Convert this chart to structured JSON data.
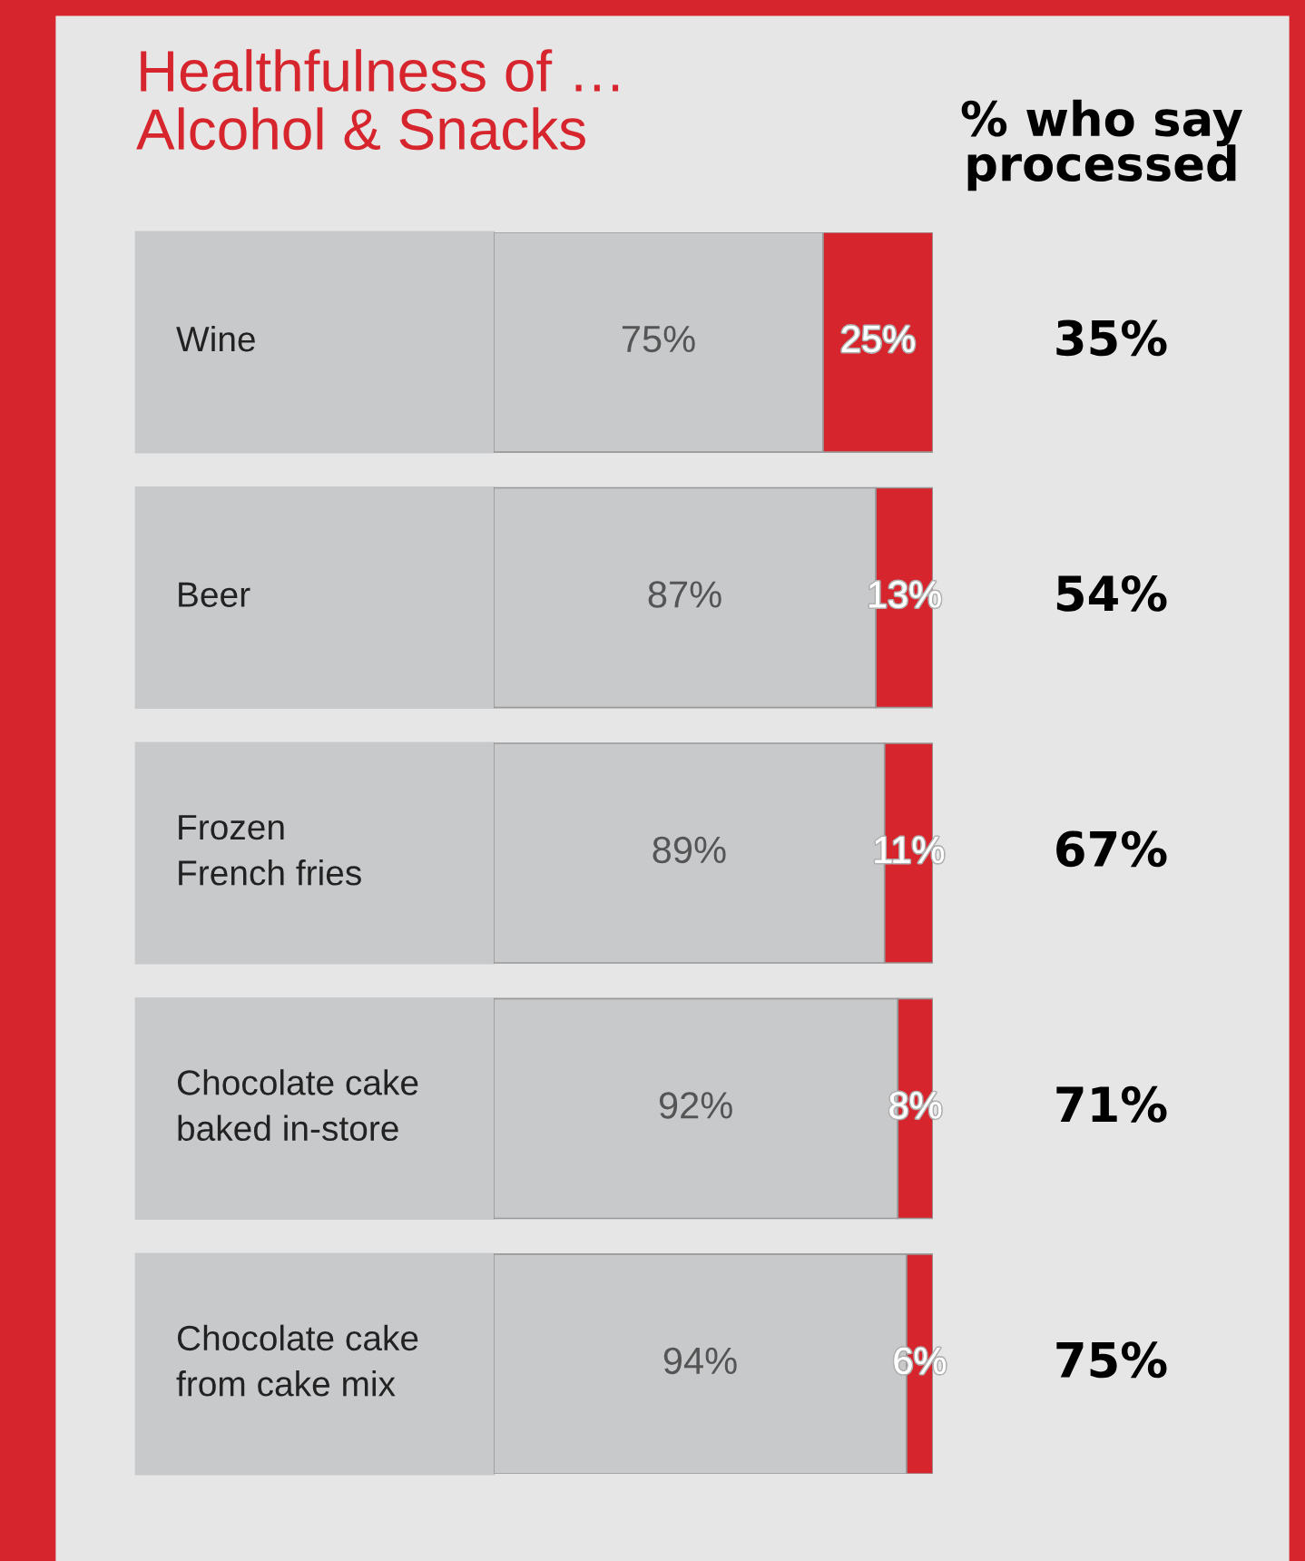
{
  "chart_data": {
    "type": "bar",
    "orientation": "horizontal",
    "stacked": true,
    "title": "Healthfulness of …\nAlcohol & Snacks",
    "categories": [
      "Wine",
      "Beer",
      "Frozen\nFrench fries",
      "Chocolate cake\nbaked in-store",
      "Chocolate cake\nfrom cake mix"
    ],
    "series": [
      {
        "color": "#c8c9cb",
        "values": [
          75,
          87,
          89,
          92,
          94
        ],
        "value_labels": [
          "75%",
          "87%",
          "89%",
          "92%",
          "94%"
        ]
      },
      {
        "color": "#d7252e",
        "values": [
          25,
          13,
          11,
          8,
          6
        ],
        "value_labels": [
          "25%",
          "13%",
          "11%",
          "8%",
          "6%"
        ]
      }
    ],
    "annotations": [
      "% who say\nprocessed",
      "35%",
      "54%",
      "67%",
      "71%",
      "75%"
    ]
  }
}
